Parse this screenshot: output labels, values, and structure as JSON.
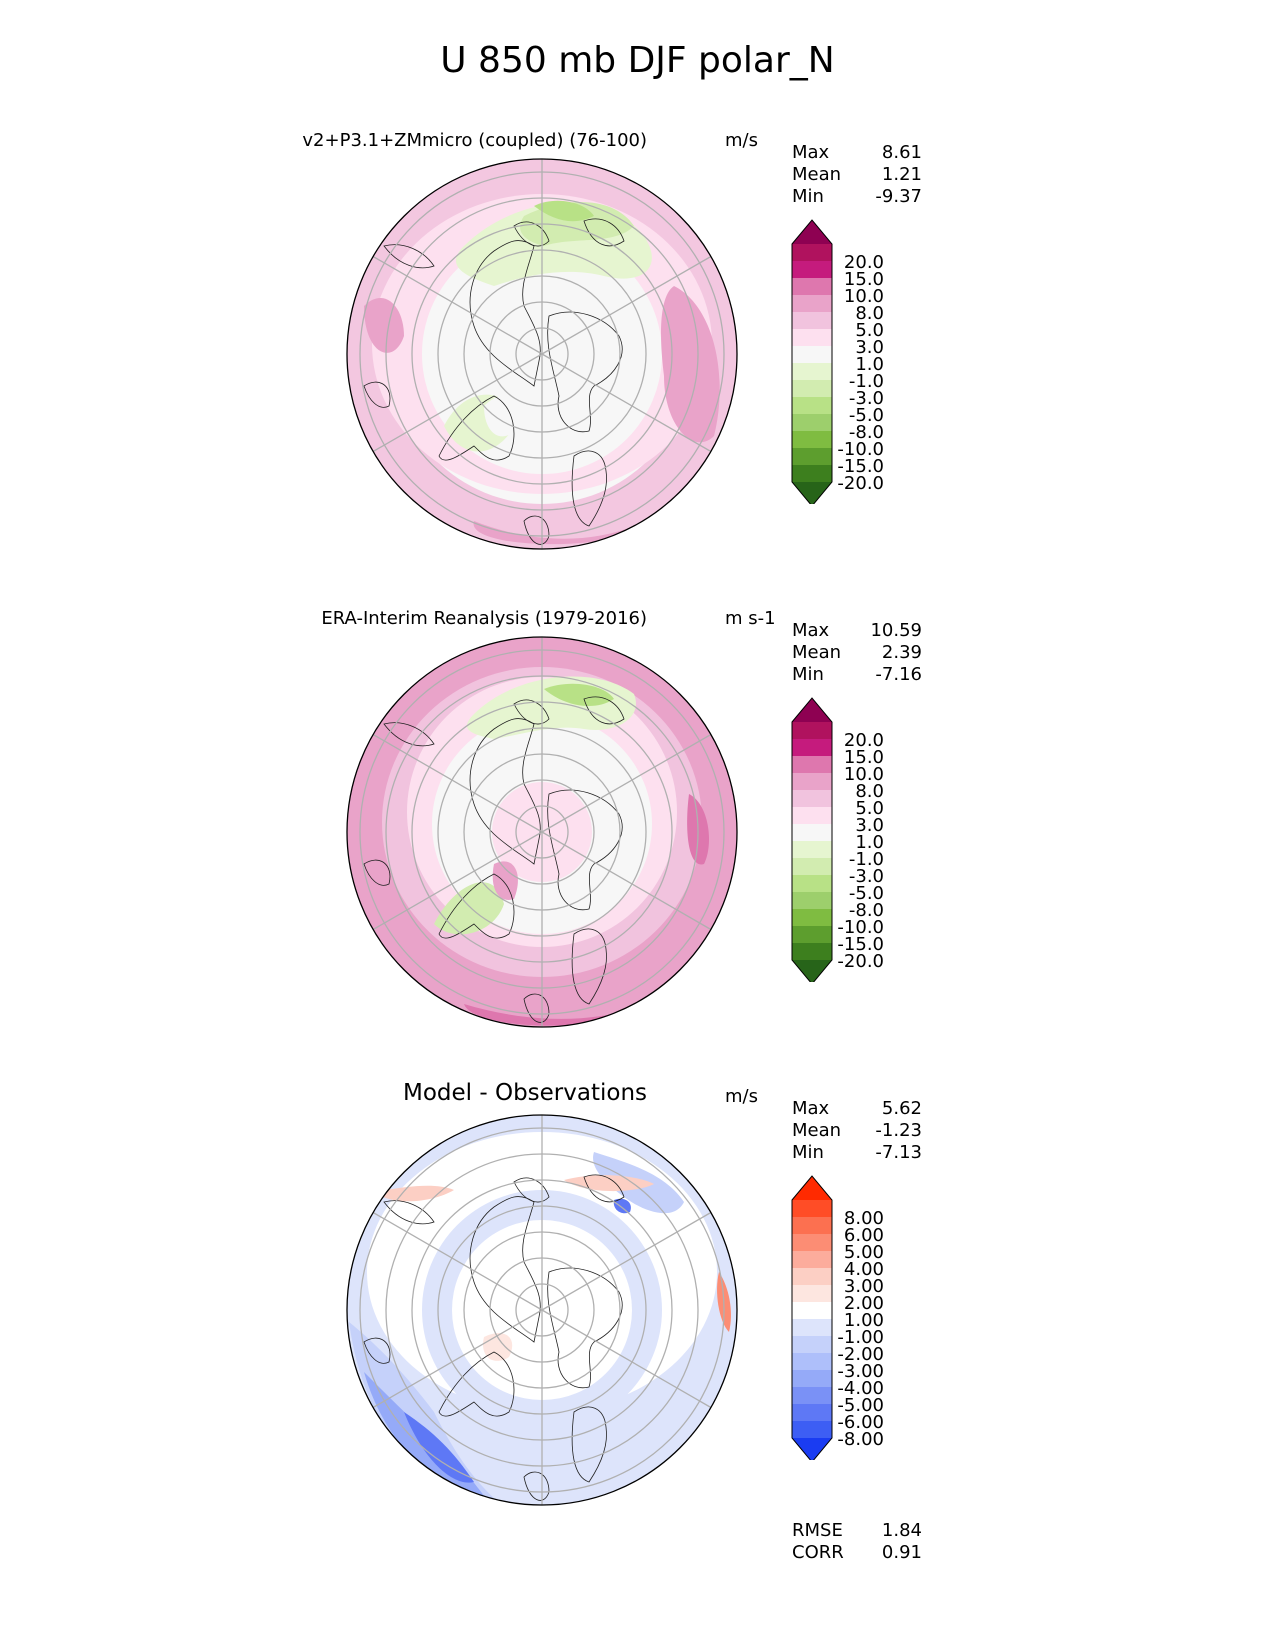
{
  "title": "U 850 mb DJF polar_N",
  "panels": [
    {
      "title": "v2+P3.1+ZMmicro (coupled) (76-100)",
      "units": "m/s",
      "stats": {
        "max_label": "Max",
        "max": "8.61",
        "mean_label": "Mean",
        "mean": "1.21",
        "min_label": "Min",
        "min": "-9.37"
      },
      "colorbar": {
        "colors": [
          "#8e0152",
          "#b0125e",
          "#c51b7d",
          "#de77ae",
          "#e9a3c9",
          "#f1c3de",
          "#fde0ef",
          "#f7f7f7",
          "#e6f5d0",
          "#d2ecb0",
          "#b8e186",
          "#9dcf6c",
          "#7fbc41",
          "#5d9e2e",
          "#3d7f1e",
          "#276419"
        ],
        "ticks": [
          "20.0",
          "15.0",
          "10.0",
          "8.0",
          "5.0",
          "3.0",
          "1.0",
          "-1.0",
          "-3.0",
          "-5.0",
          "-8.0",
          "-10.0",
          "-15.0",
          "-20.0"
        ]
      }
    },
    {
      "title": "ERA-Interim Reanalysis (1979-2016)",
      "units": "m s-1",
      "stats": {
        "max_label": "Max",
        "max": "10.59",
        "mean_label": "Mean",
        "mean": "2.39",
        "min_label": "Min",
        "min": "-7.16"
      },
      "colorbar": {
        "colors": [
          "#8e0152",
          "#b0125e",
          "#c51b7d",
          "#de77ae",
          "#e9a3c9",
          "#f1c3de",
          "#fde0ef",
          "#f7f7f7",
          "#e6f5d0",
          "#d2ecb0",
          "#b8e186",
          "#9dcf6c",
          "#7fbc41",
          "#5d9e2e",
          "#3d7f1e",
          "#276419"
        ],
        "ticks": [
          "20.0",
          "15.0",
          "10.0",
          "8.0",
          "5.0",
          "3.0",
          "1.0",
          "-1.0",
          "-3.0",
          "-5.0",
          "-8.0",
          "-10.0",
          "-15.0",
          "-20.0"
        ]
      }
    },
    {
      "title": "Model - Observations",
      "units": "m/s",
      "stats": {
        "max_label": "Max",
        "max": "5.62",
        "mean_label": "Mean",
        "mean": "-1.23",
        "min_label": "Min",
        "min": "-7.13"
      },
      "colorbar": {
        "colors": [
          "#ff2a00",
          "#ff4d26",
          "#fc7050",
          "#fc8d74",
          "#fcac9c",
          "#fccfc4",
          "#fde6e0",
          "#ffffff",
          "#dde4fb",
          "#c5d1fa",
          "#aebffa",
          "#95aaf8",
          "#7a91f6",
          "#5e78f5",
          "#3d5ef4",
          "#1a3cf2"
        ],
        "ticks": [
          "8.00",
          "6.00",
          "5.00",
          "4.00",
          "3.00",
          "2.00",
          "1.00",
          "-1.00",
          "-2.00",
          "-3.00",
          "-4.00",
          "-5.00",
          "-6.00",
          "-8.00"
        ]
      },
      "extra": {
        "rmse_label": "RMSE",
        "rmse": "1.84",
        "corr_label": "CORR",
        "corr": "0.91"
      }
    }
  ]
}
